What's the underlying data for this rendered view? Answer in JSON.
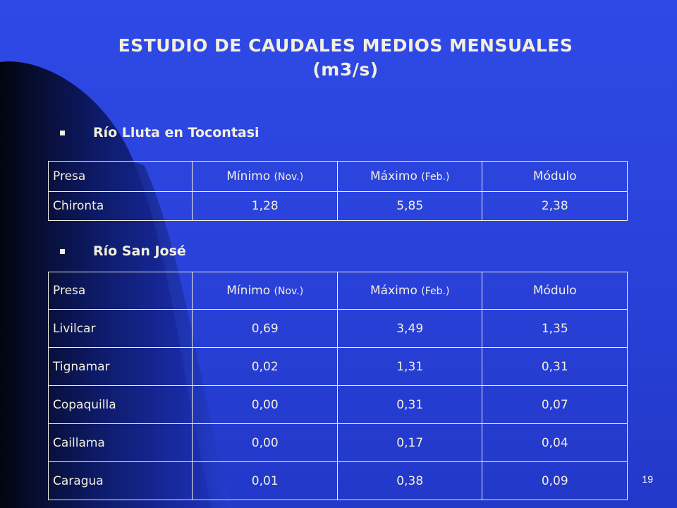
{
  "slide": {
    "title_line1": "ESTUDIO DE CAUDALES MEDIOS MENSUALES",
    "title_line2": "(m3/s)",
    "page_number": "19"
  },
  "sections": [
    {
      "heading": "Río Lluta en Tocontasi",
      "headers": {
        "presa": "Presa",
        "minimo": "Mínimo",
        "minimo_note": "(Nov.)",
        "maximo": "Máximo",
        "maximo_note": "(Feb.)",
        "modulo": "Módulo"
      },
      "rows": [
        {
          "presa": "Chironta",
          "minimo": "1,28",
          "maximo": "5,85",
          "modulo": "2,38"
        }
      ]
    },
    {
      "heading": "Río San José",
      "headers": {
        "presa": "Presa",
        "minimo": "Mínimo",
        "minimo_note": "(Nov.)",
        "maximo": "Máximo",
        "maximo_note": "(Feb.)",
        "modulo": "Módulo"
      },
      "rows": [
        {
          "presa": "Livilcar",
          "minimo": "0,69",
          "maximo": "3,49",
          "modulo": "1,35"
        },
        {
          "presa": "Tignamar",
          "minimo": "0,02",
          "maximo": "1,31",
          "modulo": "0,31"
        },
        {
          "presa": "Copaquilla",
          "minimo": "0,00",
          "maximo": "0,31",
          "modulo": "0,07"
        },
        {
          "presa": "Caillama",
          "minimo": "0,00",
          "maximo": "0,17",
          "modulo": "0,04"
        },
        {
          "presa": "Caragua",
          "minimo": "0,01",
          "maximo": "0,38",
          "modulo": "0,09"
        }
      ]
    }
  ],
  "colors": {
    "background": "#2a42da",
    "swoosh_dark": "#0a0f33",
    "text": "#f3efdd"
  }
}
